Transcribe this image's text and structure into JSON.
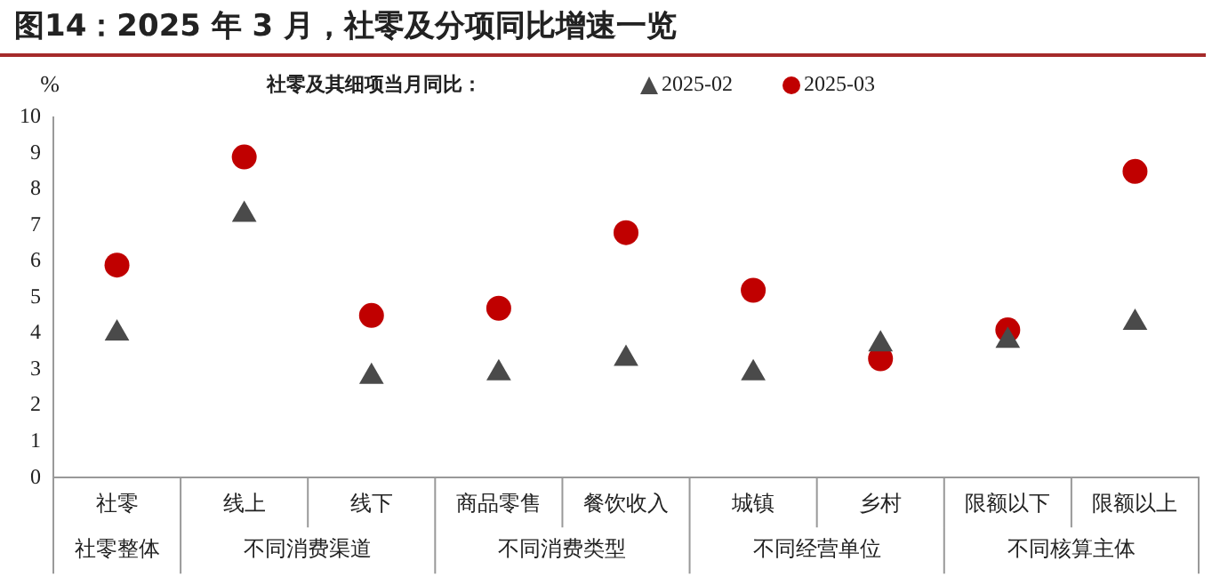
{
  "chart_data": {
    "type": "scatter",
    "title": "图14：2025 年 3 月，社零及分项同比增速一览",
    "ylabel": "%",
    "legend_title": "社零及其细项当月同比：",
    "legend": "top",
    "grid": false,
    "categories": [
      "社零",
      "线上",
      "线下",
      "商品零售",
      "餐饮收入",
      "城镇",
      "乡村",
      "限额以下",
      "限额以上"
    ],
    "annotations": [
      "社零整体",
      "不同消费渠道",
      "不同消费类型",
      "不同经营单位",
      "不同核算主体"
    ],
    "ylim": [
      0,
      10
    ],
    "yticks": [
      0,
      1,
      2,
      3,
      4,
      5,
      6,
      7,
      8,
      9,
      10
    ],
    "series": [
      {
        "name": "2025-02",
        "color": "#4a4a4a",
        "marker": "triangle",
        "values": [
          4.0,
          7.3,
          2.8,
          2.9,
          3.3,
          2.9,
          3.7,
          3.8,
          4.3
        ]
      },
      {
        "name": "2025-03",
        "color": "#c00000",
        "marker": "circle",
        "values": [
          5.9,
          8.9,
          4.5,
          4.7,
          6.8,
          5.2,
          3.3,
          4.1,
          8.5
        ]
      }
    ]
  }
}
